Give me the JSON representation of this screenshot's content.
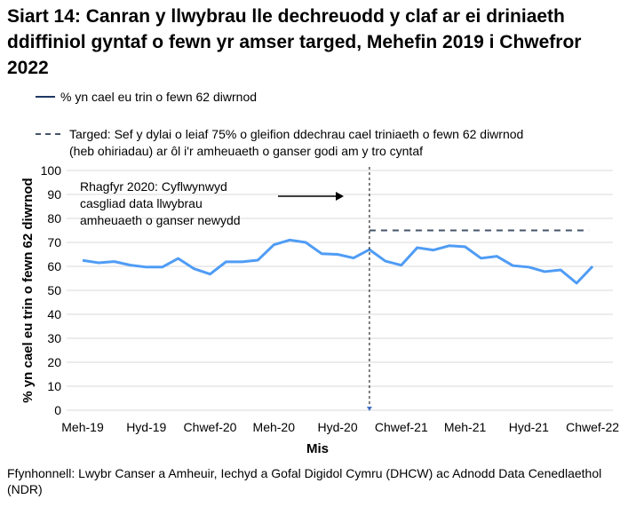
{
  "chart_data": {
    "type": "line",
    "title": "Siart 14:  Canran y llwybrau lle dechreuodd y claf ar ei driniaeth ddiffiniol gyntaf o fewn yr amser targed, Mehefin 2019 i Chwefror 2022",
    "xlabel": "Mis",
    "ylabel": "% yn cael eu trin o fewn 62 diwrnod",
    "ylim": [
      0,
      100
    ],
    "yticks": [
      0,
      10,
      20,
      30,
      40,
      50,
      60,
      70,
      80,
      90,
      100
    ],
    "xtick_labels": [
      "Meh-19",
      "Hyd-19",
      "Chwef-20",
      "Meh-20",
      "Hyd-20",
      "Chwef-21",
      "Meh-21",
      "Hyd-21",
      "Chwef-22"
    ],
    "grid": true,
    "legend_placement": "top",
    "series": [
      {
        "name": "% yn cael eu trin o fewn 62 diwrnod",
        "color": "#4f9cf5",
        "style": "solid",
        "values": [
          62.5,
          61.5,
          62,
          60.5,
          59.7,
          59.7,
          63.3,
          59,
          56.8,
          61.9,
          61.9,
          62.6,
          69,
          71,
          70,
          65.3,
          65,
          63.5,
          67,
          62.2,
          60.5,
          67.8,
          66.8,
          68.6,
          68.2,
          63.4,
          64.2,
          60.3,
          59.7,
          57.8,
          58.5,
          53,
          60
        ]
      },
      {
        "name": "Targed: Sef y dylai o leiaf 75% o gleifion ddechrau cael triniaeth o fewn 62 diwrnod (heb ohiriadau) ar ôl i'r amheuaeth o ganser godi am y tro cyntaf",
        "color": "#44546a",
        "style": "dashed",
        "value": 75,
        "start_index": 18
      }
    ],
    "annotation": {
      "text_lines": [
        "Rhagfyr 2020: Cyflwynwyd",
        "casgliad data llwybrau",
        "amheuaeth o ganser newydd"
      ],
      "marker_index": 18
    }
  },
  "legend": {
    "line1": "% yn cael eu trin o fewn 62 diwrnod",
    "line2a": "Targed: Sef y dylai o leiaf 75% o gleifion ddechrau cael triniaeth o fewn 62 diwrnod",
    "line2b": "(heb ohiriadau) ar ôl i'r amheuaeth o ganser godi am y tro cyntaf"
  },
  "source": "Ffynhonnell: Lwybr Canser a Amheuir, Iechyd a Gofal Digidol Cymru (DHCW) ac Adnodd Data Cenedlaethol (NDR)"
}
